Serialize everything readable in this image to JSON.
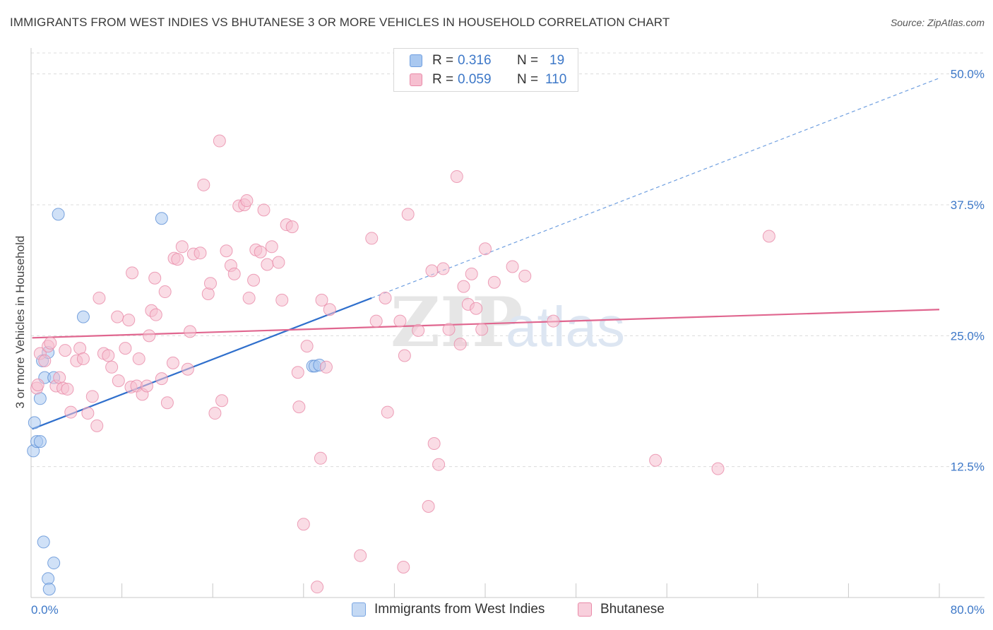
{
  "title": "IMMIGRANTS FROM WEST INDIES VS BHUTANESE 3 OR MORE VEHICLES IN HOUSEHOLD CORRELATION CHART",
  "source": "Source: ZipAtlas.com",
  "watermark": {
    "zip": "ZIP",
    "atlas": "atlas"
  },
  "legend": [
    {
      "r_label": "R =",
      "r_value": "0.316",
      "n_label": "N =",
      "n_value": "19",
      "color": "#a9c8f0",
      "border": "#6f9fe0"
    },
    {
      "r_label": "R =",
      "r_value": "0.059",
      "n_label": "N =",
      "n_value": "110",
      "color": "#f6bfd0",
      "border": "#e98aa8"
    }
  ],
  "bottom_legend": [
    "Immigrants from West Indies",
    "Bhutanese"
  ],
  "chart_data": {
    "type": "scatter",
    "title": "IMMIGRANTS FROM WEST INDIES VS BHUTANESE 3 OR MORE VEHICLES IN HOUSEHOLD CORRELATION CHART",
    "xlabel": "",
    "ylabel": "3 or more Vehicles in Household",
    "xlim": [
      0,
      80
    ],
    "ylim": [
      0,
      52
    ],
    "x_tick_labels": [
      "0.0%",
      "80.0%"
    ],
    "y_ticks": [
      12.5,
      25.0,
      37.5,
      50.0
    ],
    "y_tick_labels": [
      "12.5%",
      "25.0%",
      "37.5%",
      "50.0%"
    ],
    "grid": true,
    "series": [
      {
        "name": "Immigrants from West Indies",
        "color": "#5b8fd6",
        "fill": "#a9c8f0",
        "trend": {
          "x0": 0.1,
          "y0": 16.1,
          "x1": 30.0,
          "y1": 28.6,
          "dash_to_x": 80,
          "dash_to_y": 49.6,
          "color": "#2f6fcc"
        },
        "points": [
          {
            "x": 0.2,
            "y": 14.0
          },
          {
            "x": 0.3,
            "y": 16.7
          },
          {
            "x": 0.5,
            "y": 14.9
          },
          {
            "x": 0.8,
            "y": 14.9
          },
          {
            "x": 0.8,
            "y": 19.0
          },
          {
            "x": 1.0,
            "y": 22.6
          },
          {
            "x": 1.1,
            "y": 5.3
          },
          {
            "x": 1.2,
            "y": 21.0
          },
          {
            "x": 1.5,
            "y": 23.4
          },
          {
            "x": 1.5,
            "y": 1.8
          },
          {
            "x": 1.6,
            "y": 0.8
          },
          {
            "x": 2.0,
            "y": 3.3
          },
          {
            "x": 2.0,
            "y": 21.0
          },
          {
            "x": 2.4,
            "y": 36.6
          },
          {
            "x": 4.6,
            "y": 26.8
          },
          {
            "x": 11.5,
            "y": 36.2
          },
          {
            "x": 24.8,
            "y": 22.1
          },
          {
            "x": 25.0,
            "y": 22.1
          },
          {
            "x": 25.4,
            "y": 22.2
          }
        ]
      },
      {
        "name": "Bhutanese",
        "color": "#e98aa8",
        "fill": "#f6bfd0",
        "trend": {
          "x0": 0.1,
          "y0": 24.8,
          "x1": 80.0,
          "y1": 27.5,
          "color": "#e0668f"
        },
        "points": [
          {
            "x": 0.5,
            "y": 20.0
          },
          {
            "x": 0.6,
            "y": 20.3
          },
          {
            "x": 0.8,
            "y": 23.3
          },
          {
            "x": 1.2,
            "y": 22.6
          },
          {
            "x": 1.5,
            "y": 24.0
          },
          {
            "x": 1.7,
            "y": 24.3
          },
          {
            "x": 2.2,
            "y": 20.2
          },
          {
            "x": 2.5,
            "y": 21.0
          },
          {
            "x": 2.8,
            "y": 20.0
          },
          {
            "x": 3.0,
            "y": 23.6
          },
          {
            "x": 3.2,
            "y": 19.9
          },
          {
            "x": 3.5,
            "y": 17.7
          },
          {
            "x": 4.0,
            "y": 22.6
          },
          {
            "x": 4.3,
            "y": 23.8
          },
          {
            "x": 4.6,
            "y": 22.8
          },
          {
            "x": 5.0,
            "y": 17.6
          },
          {
            "x": 5.4,
            "y": 19.2
          },
          {
            "x": 5.8,
            "y": 16.4
          },
          {
            "x": 6.0,
            "y": 28.6
          },
          {
            "x": 6.4,
            "y": 23.3
          },
          {
            "x": 6.8,
            "y": 23.1
          },
          {
            "x": 7.1,
            "y": 22.0
          },
          {
            "x": 7.6,
            "y": 26.8
          },
          {
            "x": 7.7,
            "y": 20.7
          },
          {
            "x": 8.3,
            "y": 23.8
          },
          {
            "x": 8.6,
            "y": 26.5
          },
          {
            "x": 8.8,
            "y": 20.1
          },
          {
            "x": 8.9,
            "y": 31.0
          },
          {
            "x": 9.3,
            "y": 20.2
          },
          {
            "x": 9.5,
            "y": 22.8
          },
          {
            "x": 9.8,
            "y": 19.4
          },
          {
            "x": 10.2,
            "y": 20.2
          },
          {
            "x": 10.4,
            "y": 25.0
          },
          {
            "x": 10.6,
            "y": 27.4
          },
          {
            "x": 10.9,
            "y": 30.5
          },
          {
            "x": 11.0,
            "y": 27.0
          },
          {
            "x": 11.5,
            "y": 20.9
          },
          {
            "x": 11.8,
            "y": 29.2
          },
          {
            "x": 12.0,
            "y": 18.6
          },
          {
            "x": 12.5,
            "y": 22.4
          },
          {
            "x": 12.6,
            "y": 32.4
          },
          {
            "x": 12.9,
            "y": 32.3
          },
          {
            "x": 13.3,
            "y": 33.5
          },
          {
            "x": 13.8,
            "y": 21.8
          },
          {
            "x": 14.0,
            "y": 25.4
          },
          {
            "x": 14.3,
            "y": 32.8
          },
          {
            "x": 14.9,
            "y": 32.9
          },
          {
            "x": 15.2,
            "y": 39.4
          },
          {
            "x": 15.6,
            "y": 29.0
          },
          {
            "x": 15.8,
            "y": 30.0
          },
          {
            "x": 16.2,
            "y": 17.6
          },
          {
            "x": 16.6,
            "y": 43.6
          },
          {
            "x": 16.8,
            "y": 18.8
          },
          {
            "x": 17.2,
            "y": 33.1
          },
          {
            "x": 17.6,
            "y": 31.7
          },
          {
            "x": 17.9,
            "y": 30.9
          },
          {
            "x": 18.3,
            "y": 37.4
          },
          {
            "x": 18.8,
            "y": 37.5
          },
          {
            "x": 19.0,
            "y": 37.9
          },
          {
            "x": 19.2,
            "y": 28.6
          },
          {
            "x": 19.6,
            "y": 30.3
          },
          {
            "x": 19.8,
            "y": 33.2
          },
          {
            "x": 20.2,
            "y": 33.0
          },
          {
            "x": 20.5,
            "y": 37.0
          },
          {
            "x": 20.8,
            "y": 31.8
          },
          {
            "x": 21.2,
            "y": 33.5
          },
          {
            "x": 21.8,
            "y": 32.0
          },
          {
            "x": 22.1,
            "y": 28.4
          },
          {
            "x": 22.5,
            "y": 35.6
          },
          {
            "x": 23.0,
            "y": 35.4
          },
          {
            "x": 23.5,
            "y": 21.5
          },
          {
            "x": 23.6,
            "y": 18.2
          },
          {
            "x": 24.0,
            "y": 7.0
          },
          {
            "x": 24.3,
            "y": 24.0
          },
          {
            "x": 25.2,
            "y": 1.0
          },
          {
            "x": 25.5,
            "y": 13.3
          },
          {
            "x": 25.6,
            "y": 28.4
          },
          {
            "x": 26.0,
            "y": 22.0
          },
          {
            "x": 26.3,
            "y": 27.5
          },
          {
            "x": 29.0,
            "y": 4.0
          },
          {
            "x": 30.0,
            "y": 34.3
          },
          {
            "x": 30.4,
            "y": 26.4
          },
          {
            "x": 31.2,
            "y": 28.6
          },
          {
            "x": 31.4,
            "y": 17.7
          },
          {
            "x": 32.5,
            "y": 26.4
          },
          {
            "x": 32.8,
            "y": 2.9
          },
          {
            "x": 32.9,
            "y": 23.1
          },
          {
            "x": 33.2,
            "y": 36.6
          },
          {
            "x": 34.1,
            "y": 25.5
          },
          {
            "x": 35.0,
            "y": 8.7
          },
          {
            "x": 35.3,
            "y": 31.2
          },
          {
            "x": 35.5,
            "y": 14.7
          },
          {
            "x": 35.9,
            "y": 12.7
          },
          {
            "x": 36.3,
            "y": 31.4
          },
          {
            "x": 36.8,
            "y": 25.6
          },
          {
            "x": 37.5,
            "y": 40.2
          },
          {
            "x": 37.8,
            "y": 24.2
          },
          {
            "x": 38.1,
            "y": 29.7
          },
          {
            "x": 38.5,
            "y": 28.0
          },
          {
            "x": 38.8,
            "y": 30.9
          },
          {
            "x": 39.2,
            "y": 27.6
          },
          {
            "x": 39.7,
            "y": 25.6
          },
          {
            "x": 40.0,
            "y": 33.3
          },
          {
            "x": 40.8,
            "y": 30.1
          },
          {
            "x": 42.4,
            "y": 31.6
          },
          {
            "x": 43.5,
            "y": 30.7
          },
          {
            "x": 46.0,
            "y": 26.4
          },
          {
            "x": 55.0,
            "y": 13.1
          },
          {
            "x": 60.5,
            "y": 12.3
          },
          {
            "x": 65.0,
            "y": 34.5
          }
        ]
      }
    ]
  }
}
